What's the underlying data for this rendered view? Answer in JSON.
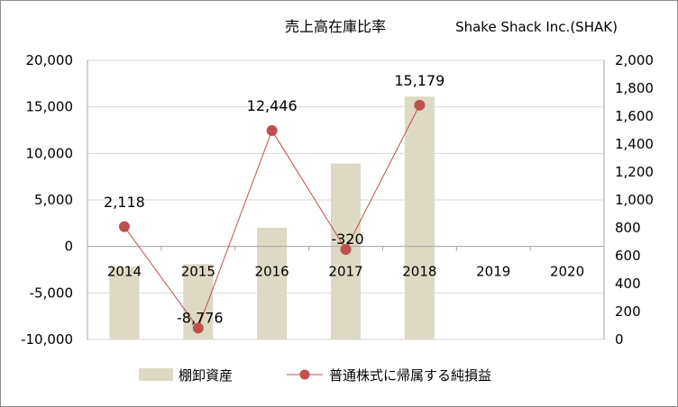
{
  "chart_data": {
    "type": "bar+line",
    "title": "売上高在庫比率",
    "subtitle": "Shake Shack Inc.(SHAK)",
    "categories": [
      "2014",
      "2015",
      "2016",
      "2017",
      "2018",
      "2019",
      "2020"
    ],
    "series": [
      {
        "name": "棚卸資産",
        "type": "bar",
        "axis": "right",
        "color": "#ddd9c4",
        "values": [
          520,
          540,
          800,
          1260,
          1740,
          null,
          null
        ]
      },
      {
        "name": "普通株式に帰属する純損益",
        "type": "line",
        "axis": "left",
        "color": "#c0504d",
        "values": [
          2118,
          -8776,
          12446,
          -320,
          15179,
          null,
          null
        ]
      }
    ],
    "data_labels": [
      "2,118",
      "-8,776",
      "12,446",
      "-320",
      "15,179"
    ],
    "data_label_colors": [
      "#000000",
      "#ff0000",
      "#000000",
      "#ff0000",
      "#000000"
    ],
    "y_left": {
      "ylim": [
        -10000,
        20000
      ],
      "ticks": [
        20000,
        15000,
        10000,
        5000,
        0,
        -5000,
        -10000
      ],
      "tick_labels": [
        "20,000",
        "15,000",
        "10,000",
        "5,000",
        "0",
        "-5,000",
        "-10,000"
      ],
      "negative_color": "#ff0000"
    },
    "y_right": {
      "ylim": [
        0,
        2000
      ],
      "ticks": [
        2000,
        1800,
        1600,
        1400,
        1200,
        1000,
        800,
        600,
        400,
        200,
        0
      ],
      "tick_labels": [
        "2,000",
        "1,800",
        "1,600",
        "1,400",
        "1,200",
        "1,000",
        "800",
        "600",
        "400",
        "200",
        "0"
      ]
    },
    "grid": true,
    "legend_position": "bottom"
  }
}
